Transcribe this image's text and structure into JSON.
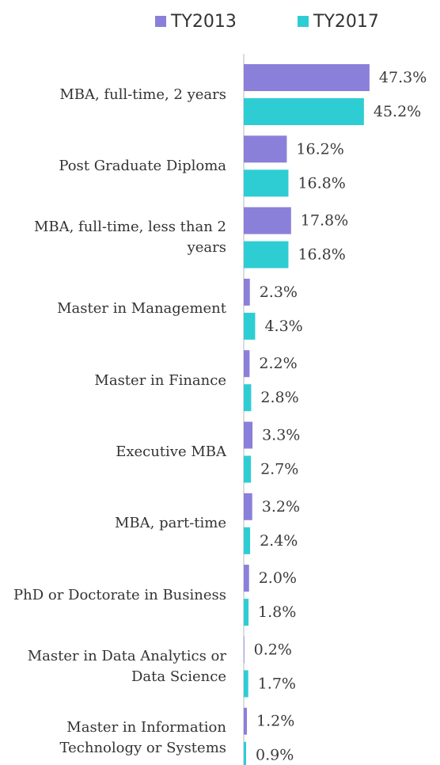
{
  "chart_data": {
    "type": "bar",
    "orientation": "horizontal",
    "categories": [
      "MBA, full-time, 2 years",
      "Post Graduate Diploma",
      "MBA, full-time, less than 2 years",
      "Master in Management",
      "Master in Finance",
      "Executive MBA",
      "MBA, part-time",
      "PhD or Doctorate in Business",
      "Master in Data Analytics or Data Science",
      "Master in Information Technology or Systems"
    ],
    "series": [
      {
        "name": "TY2013",
        "color": "#8b80d9",
        "values": [
          47.3,
          16.2,
          17.8,
          2.3,
          2.2,
          3.3,
          3.2,
          2.0,
          0.2,
          1.2
        ],
        "value_labels": [
          "47.3%",
          "16.2%",
          "17.8%",
          "2.3%",
          "2.2%",
          "3.3%",
          "3.2%",
          "2.0%",
          "0.2%",
          "1.2%"
        ]
      },
      {
        "name": "TY2017",
        "color": "#2ecdd3",
        "values": [
          45.2,
          16.8,
          16.8,
          4.3,
          2.8,
          2.7,
          2.4,
          1.8,
          1.7,
          0.9
        ],
        "value_labels": [
          "45.2%",
          "16.8%",
          "16.8%",
          "4.3%",
          "2.8%",
          "2.7%",
          "2.4%",
          "1.8%",
          "1.7%",
          "0.9%"
        ]
      }
    ],
    "legend": "top"
  }
}
